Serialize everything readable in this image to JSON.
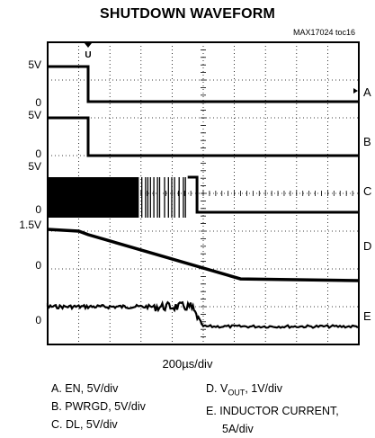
{
  "chart_data": {
    "type": "line",
    "title": "SHUTDOWN WAVEFORM",
    "figure_id": "MAX17024 toc16",
    "xlabel": "200µs/div",
    "x_divisions": 10,
    "y_divisions": 8,
    "grid": true,
    "trigger_marker": "U",
    "tick_labels_left": [
      "5V",
      "0",
      "5V",
      "0",
      "5V",
      "0",
      "1.5V",
      "0",
      "0"
    ],
    "channel_labels": [
      "A",
      "B",
      "C",
      "D",
      "E"
    ],
    "legend": [
      {
        "key": "A",
        "text": "A. EN, 5V/div"
      },
      {
        "key": "B",
        "text": "B. PWRGD, 5V/div"
      },
      {
        "key": "C",
        "text": "C. DL, 5V/div"
      },
      {
        "key": "D",
        "text_main": "D. V",
        "text_sub": "OUT",
        "text_tail": ", 1V/div"
      },
      {
        "key": "E",
        "text": "E. INDUCTOR CURRENT,",
        "text2": "5A/div"
      }
    ],
    "series": [
      {
        "channel": "A",
        "signal": "EN",
        "scale": "5V/div",
        "points": [
          [
            0,
            5
          ],
          [
            1.3,
            5
          ],
          [
            1.3,
            0
          ],
          [
            10,
            0
          ]
        ]
      },
      {
        "channel": "B",
        "signal": "PWRGD",
        "scale": "5V/div",
        "points": [
          [
            0,
            5
          ],
          [
            1.3,
            5
          ],
          [
            1.3,
            0
          ],
          [
            10,
            0
          ]
        ]
      },
      {
        "channel": "C",
        "signal": "DL",
        "scale": "5V/div",
        "switching_until": 4.5,
        "high_until": 4.8,
        "points": [
          [
            0,
            5
          ],
          [
            4.8,
            5
          ],
          [
            4.8,
            0
          ],
          [
            10,
            0
          ]
        ]
      },
      {
        "channel": "D",
        "signal": "VOUT",
        "scale": "1V/div",
        "points": [
          [
            0,
            1.5
          ],
          [
            1.0,
            1.45
          ],
          [
            1.3,
            1.35
          ],
          [
            6.2,
            0.1
          ],
          [
            10,
            0.05
          ]
        ]
      },
      {
        "channel": "E",
        "signal": "INDUCTOR CURRENT",
        "scale": "5A/div",
        "oscillation_until": 4.6,
        "points": [
          [
            0,
            0.8
          ],
          [
            4.6,
            0.8
          ],
          [
            5.0,
            0.0
          ],
          [
            10,
            0.0
          ]
        ]
      }
    ]
  }
}
